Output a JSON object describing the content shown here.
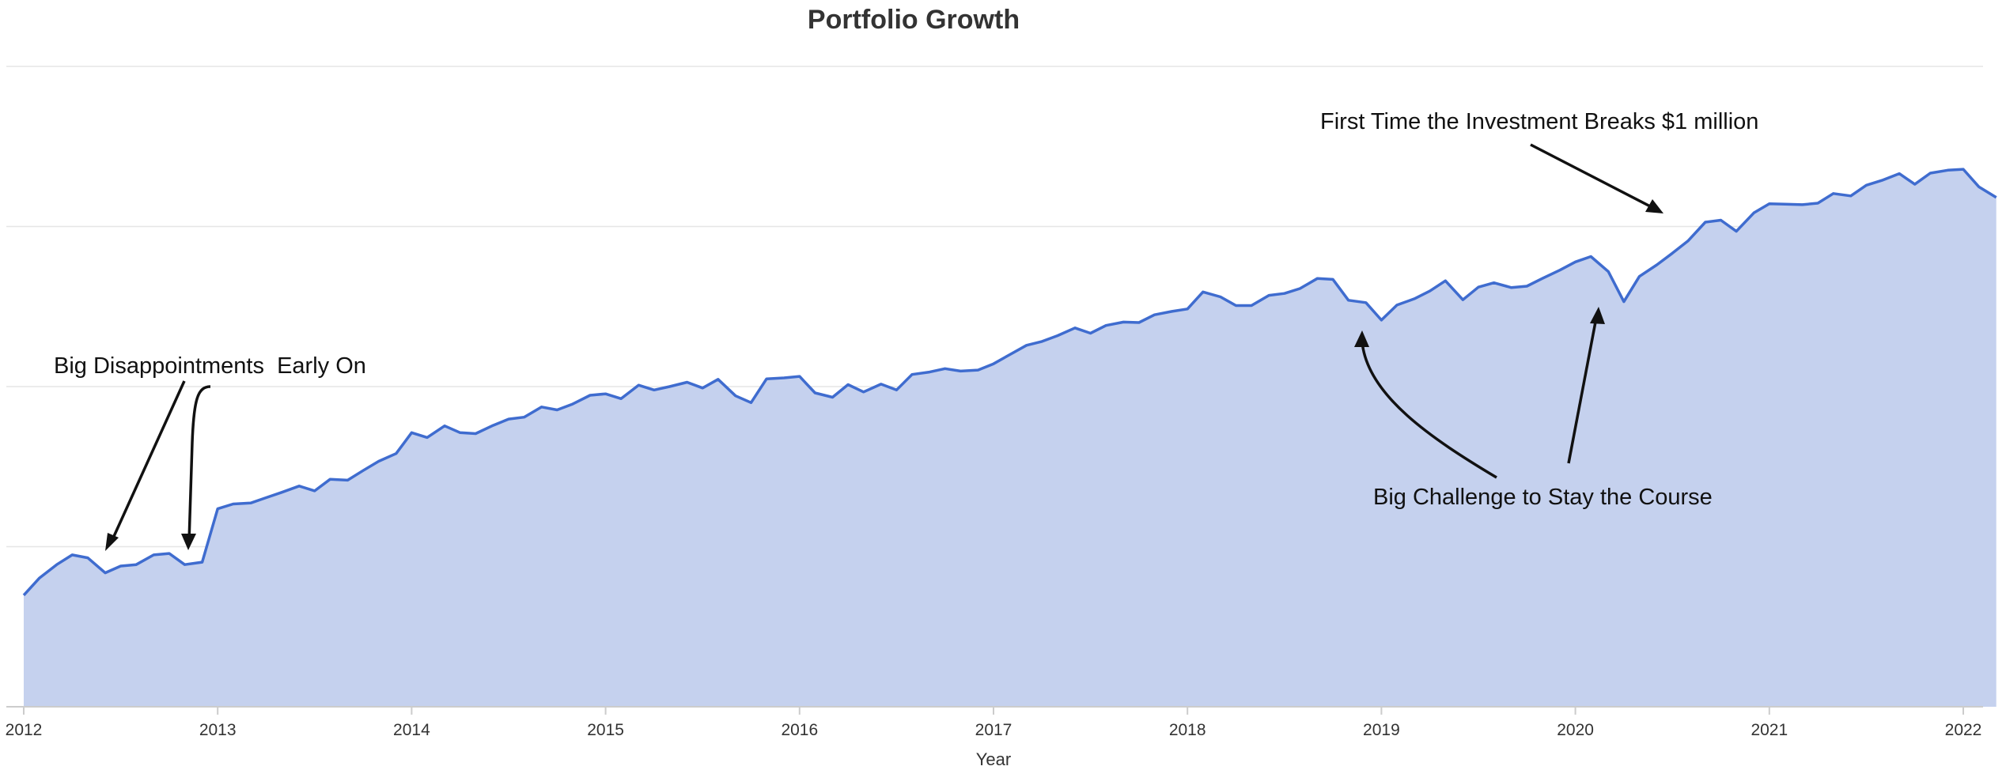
{
  "chart_data": {
    "type": "area",
    "title": "Portfolio Growth",
    "xlabel": "Year",
    "ylabel": "",
    "xlim": [
      2012,
      2022.35
    ],
    "ylim": [
      0,
      1320000
    ],
    "x_ticks": [
      "2012",
      "2013",
      "2014",
      "2015",
      "2016",
      "2017",
      "2018",
      "2019",
      "2020",
      "2021",
      "2022"
    ],
    "grid": "horizontal",
    "colors": {
      "line": "#3f6ccf",
      "fill": "#c5d1ee",
      "axis": "#cccccc",
      "grid": "#e6e6e6"
    },
    "series": [
      {
        "values": [
          [
            2012.0,
            230000
          ],
          [
            2012.08,
            265000
          ],
          [
            2012.17,
            293000
          ],
          [
            2012.25,
            313000
          ],
          [
            2012.33,
            307000
          ],
          [
            2012.42,
            276000
          ],
          [
            2012.5,
            290000
          ],
          [
            2012.58,
            293000
          ],
          [
            2012.67,
            313000
          ],
          [
            2012.75,
            316000
          ],
          [
            2012.83,
            293000
          ],
          [
            2012.92,
            298000
          ],
          [
            2013.0,
            408000
          ],
          [
            2013.08,
            418000
          ],
          [
            2013.17,
            420000
          ],
          [
            2013.25,
            431000
          ],
          [
            2013.33,
            442000
          ],
          [
            2013.42,
            455000
          ],
          [
            2013.5,
            445000
          ],
          [
            2013.58,
            469000
          ],
          [
            2013.67,
            467000
          ],
          [
            2013.75,
            487000
          ],
          [
            2013.83,
            506000
          ],
          [
            2013.92,
            522000
          ],
          [
            2014.0,
            565000
          ],
          [
            2014.08,
            555000
          ],
          [
            2014.17,
            579000
          ],
          [
            2014.25,
            565000
          ],
          [
            2014.33,
            563000
          ],
          [
            2014.42,
            580000
          ],
          [
            2014.5,
            593000
          ],
          [
            2014.58,
            597000
          ],
          [
            2014.67,
            618000
          ],
          [
            2014.75,
            612000
          ],
          [
            2014.83,
            624000
          ],
          [
            2014.92,
            642000
          ],
          [
            2015.0,
            645000
          ],
          [
            2015.08,
            635000
          ],
          [
            2015.17,
            663000
          ],
          [
            2015.25,
            653000
          ],
          [
            2015.33,
            660000
          ],
          [
            2015.42,
            669000
          ],
          [
            2015.5,
            657000
          ],
          [
            2015.58,
            675000
          ],
          [
            2015.67,
            641000
          ],
          [
            2015.75,
            627000
          ],
          [
            2015.83,
            676000
          ],
          [
            2015.92,
            678000
          ],
          [
            2016.0,
            681000
          ],
          [
            2016.08,
            647000
          ],
          [
            2016.17,
            638000
          ],
          [
            2016.25,
            664000
          ],
          [
            2016.33,
            649000
          ],
          [
            2016.42,
            665000
          ],
          [
            2016.5,
            653000
          ],
          [
            2016.58,
            685000
          ],
          [
            2016.67,
            690000
          ],
          [
            2016.75,
            697000
          ],
          [
            2016.83,
            692000
          ],
          [
            2016.92,
            694000
          ],
          [
            2017.0,
            707000
          ],
          [
            2017.08,
            725000
          ],
          [
            2017.17,
            745000
          ],
          [
            2017.25,
            753000
          ],
          [
            2017.33,
            765000
          ],
          [
            2017.42,
            781000
          ],
          [
            2017.5,
            770000
          ],
          [
            2017.58,
            786000
          ],
          [
            2017.67,
            793000
          ],
          [
            2017.75,
            792000
          ],
          [
            2017.83,
            808000
          ],
          [
            2017.92,
            815000
          ],
          [
            2018.0,
            820000
          ],
          [
            2018.08,
            855000
          ],
          [
            2018.17,
            845000
          ],
          [
            2018.25,
            827000
          ],
          [
            2018.33,
            827000
          ],
          [
            2018.42,
            848000
          ],
          [
            2018.5,
            852000
          ],
          [
            2018.58,
            862000
          ],
          [
            2018.67,
            883000
          ],
          [
            2018.75,
            881000
          ],
          [
            2018.83,
            838000
          ],
          [
            2018.92,
            833000
          ],
          [
            2019.0,
            797000
          ],
          [
            2019.08,
            828000
          ],
          [
            2019.17,
            841000
          ],
          [
            2019.25,
            857000
          ],
          [
            2019.33,
            878000
          ],
          [
            2019.42,
            839000
          ],
          [
            2019.5,
            865000
          ],
          [
            2019.58,
            874000
          ],
          [
            2019.67,
            864000
          ],
          [
            2019.75,
            867000
          ],
          [
            2019.83,
            883000
          ],
          [
            2019.92,
            900000
          ],
          [
            2020.0,
            917000
          ],
          [
            2020.08,
            928000
          ],
          [
            2020.17,
            897000
          ],
          [
            2020.25,
            835000
          ],
          [
            2020.33,
            887000
          ],
          [
            2020.42,
            911000
          ],
          [
            2020.5,
            935000
          ],
          [
            2020.58,
            960000
          ],
          [
            2020.67,
            999000
          ],
          [
            2020.75,
            1003000
          ],
          [
            2020.83,
            980000
          ],
          [
            2020.92,
            1018000
          ],
          [
            2021.0,
            1037000
          ],
          [
            2021.08,
            1036000
          ],
          [
            2021.17,
            1035000
          ],
          [
            2021.25,
            1038000
          ],
          [
            2021.33,
            1058000
          ],
          [
            2021.42,
            1053000
          ],
          [
            2021.5,
            1075000
          ],
          [
            2021.58,
            1085000
          ],
          [
            2021.67,
            1099000
          ],
          [
            2021.75,
            1077000
          ],
          [
            2021.83,
            1100000
          ],
          [
            2021.92,
            1106000
          ],
          [
            2022.0,
            1108000
          ],
          [
            2022.08,
            1072000
          ],
          [
            2022.17,
            1050000
          ]
        ]
      }
    ],
    "annotations": [
      {
        "text": "Big Disappointments  Early On",
        "points_to": [
          [
            2012.46,
            280000
          ],
          [
            2012.9,
            297000
          ]
        ]
      },
      {
        "text": "First Time the Investment Breaks $1 million",
        "points_to": [
          [
            2020.59,
            1000000
          ]
        ]
      },
      {
        "text": "Big Challenge to Stay the Course",
        "points_to": [
          [
            2019.0,
            800000
          ],
          [
            2020.25,
            840000
          ]
        ]
      }
    ]
  }
}
